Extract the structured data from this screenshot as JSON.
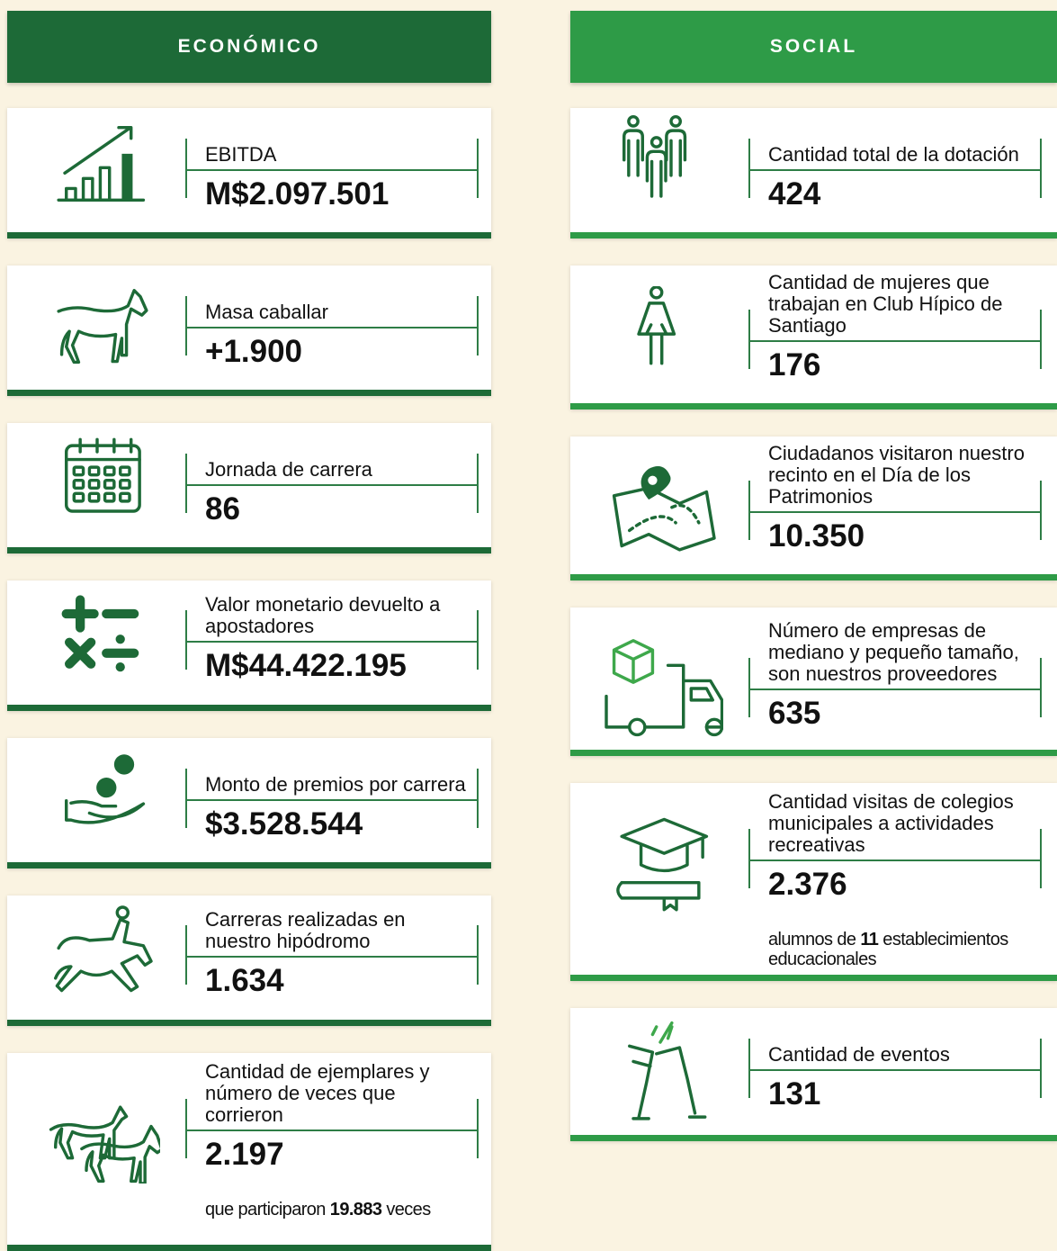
{
  "economico": {
    "title": "ECONÓMICO",
    "items": [
      {
        "label": "EBITDA",
        "value": "M$2.097.501"
      },
      {
        "label": "Masa caballar",
        "value": "+1.900"
      },
      {
        "label": "Jornada de carrera",
        "value": "86"
      },
      {
        "label": "Valor monetario devuelto a apostadores",
        "value": "M$44.422.195"
      },
      {
        "label": "Monto de premios por carrera",
        "value": "$3.528.544"
      },
      {
        "label": "Carreras realizadas en nuestro hipódromo",
        "value": "1.634"
      },
      {
        "label": "Cantidad de ejemplares y número de veces que corrieron",
        "value": "2.197",
        "note": {
          "before": "que participaron",
          "bold": "19.883",
          "after": "veces"
        }
      }
    ]
  },
  "social": {
    "title": "SOCIAL",
    "items": [
      {
        "label": "Cantidad total de la dotación",
        "value": "424"
      },
      {
        "label": "Cantidad de mujeres que trabajan en Club Hípico de Santiago",
        "value": "176"
      },
      {
        "label": "Ciudadanos visitaron nuestro recinto en el Día de los Patrimonios",
        "value": "10.350"
      },
      {
        "label": "Número de empresas de mediano y pequeño tamaño, son nuestros proveedores",
        "value": "635"
      },
      {
        "label": "Cantidad visitas de colegios municipales a actividades recreativas",
        "value": "2.376",
        "note": {
          "before": "alumnos de",
          "bold": "11",
          "after": "establecimientos educacionales"
        }
      },
      {
        "label": "Cantidad de eventos",
        "value": "131"
      }
    ]
  }
}
